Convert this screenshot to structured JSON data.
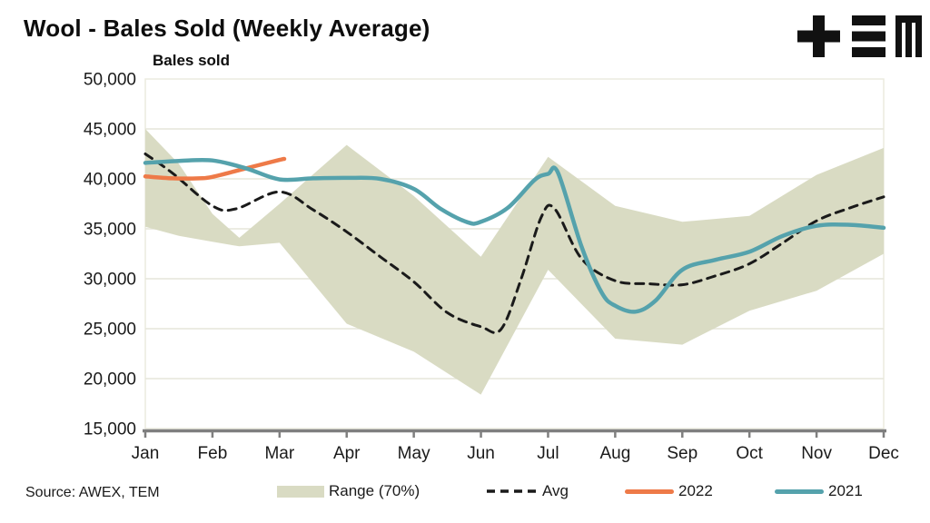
{
  "header": {
    "title": "Wool - Bales Sold (Weekly Average)"
  },
  "source": {
    "text": "Source: AWEX, TEM"
  },
  "legend": [
    {
      "label": "Range (70%)",
      "type": "band",
      "color": "#D9DBC3"
    },
    {
      "label": "Avg",
      "type": "dashed",
      "color": "#1a1a1a"
    },
    {
      "label": "2022",
      "type": "line",
      "color": "#EE7A48"
    },
    {
      "label": "2021",
      "type": "line",
      "color": "#55A2AC"
    }
  ],
  "colors": {
    "band": "#D9DBC3",
    "avg": "#1a1a1a",
    "y2022": "#EE7A48",
    "y2021": "#55A2AC",
    "gridline": "#E6E6DA",
    "plot_border": "#ECEBDF",
    "axis": "#7F7F7F",
    "text": "#1a1a1a",
    "logo": "#111111"
  },
  "chart_data": {
    "type": "area",
    "title": "Wool - Bales Sold (Weekly Average)",
    "xlabel": "",
    "ylabel": "Bales sold",
    "ylim": [
      15000,
      50000
    ],
    "yticks": [
      50000,
      45000,
      40000,
      35000,
      30000,
      25000,
      20000,
      15000
    ],
    "categories": [
      "Jan",
      "Feb",
      "Mar",
      "Apr",
      "May",
      "Jun",
      "Jul",
      "Aug",
      "Sep",
      "Oct",
      "Nov",
      "Dec"
    ],
    "x_unit": "month index, 0 = Jan .. 11 = Dec (weekly-resolution data)",
    "grid": true,
    "legend_position": "bottom",
    "series": [
      {
        "name": "Range (70%)",
        "type": "band",
        "color": "#D9DBC3",
        "top": [
          [
            0,
            45000
          ],
          [
            0.5,
            41500
          ],
          [
            1,
            36500
          ],
          [
            1.4,
            34100
          ],
          [
            2,
            37500
          ],
          [
            3,
            43400
          ],
          [
            4,
            38300
          ],
          [
            5,
            32200
          ],
          [
            6,
            42200
          ],
          [
            7,
            37300
          ],
          [
            8,
            35700
          ],
          [
            9,
            36300
          ],
          [
            10,
            40400
          ],
          [
            11,
            43100
          ]
        ],
        "bottom": [
          [
            0,
            35200
          ],
          [
            0.5,
            34300
          ],
          [
            1,
            33700
          ],
          [
            1.4,
            33250
          ],
          [
            2,
            33600
          ],
          [
            3,
            25500
          ],
          [
            4,
            22700
          ],
          [
            5,
            18400
          ],
          [
            6,
            30900
          ],
          [
            7,
            24000
          ],
          [
            8,
            23400
          ],
          [
            9,
            26800
          ],
          [
            10,
            28800
          ],
          [
            11,
            32500
          ]
        ]
      },
      {
        "name": "Avg",
        "type": "line",
        "style": "dashed",
        "color": "#1a1a1a",
        "width": 3,
        "points": [
          [
            0,
            42500
          ],
          [
            0.4,
            40600
          ],
          [
            1,
            37300
          ],
          [
            1.35,
            37000
          ],
          [
            2,
            38700
          ],
          [
            2.5,
            36900
          ],
          [
            3,
            34700
          ],
          [
            3.5,
            32200
          ],
          [
            4,
            29700
          ],
          [
            4.5,
            26600
          ],
          [
            5,
            25200
          ],
          [
            5.3,
            24950
          ],
          [
            5.6,
            30000
          ],
          [
            5.9,
            36200
          ],
          [
            6.1,
            37000
          ],
          [
            6.5,
            32000
          ],
          [
            7,
            29800
          ],
          [
            7.5,
            29500
          ],
          [
            8,
            29400
          ],
          [
            8.5,
            30300
          ],
          [
            9,
            31500
          ],
          [
            9.5,
            33600
          ],
          [
            10,
            35800
          ],
          [
            10.5,
            37100
          ],
          [
            11,
            38200
          ]
        ]
      },
      {
        "name": "2022",
        "type": "line",
        "style": "solid",
        "color": "#EE7A48",
        "width": 4.5,
        "points": [
          [
            0,
            40250
          ],
          [
            0.4,
            40050
          ],
          [
            0.8,
            40050
          ],
          [
            1,
            40200
          ],
          [
            1.5,
            41050
          ],
          [
            2,
            41900
          ],
          [
            2.07,
            42000
          ]
        ]
      },
      {
        "name": "2021",
        "type": "line",
        "style": "solid",
        "color": "#55A2AC",
        "width": 4.5,
        "points": [
          [
            0,
            41600
          ],
          [
            0.5,
            41800
          ],
          [
            1,
            41850
          ],
          [
            1.5,
            41050
          ],
          [
            2,
            39950
          ],
          [
            2.5,
            40050
          ],
          [
            3,
            40100
          ],
          [
            3.5,
            40000
          ],
          [
            4,
            39000
          ],
          [
            4.4,
            37000
          ],
          [
            4.8,
            35650
          ],
          [
            5,
            35700
          ],
          [
            5.4,
            37100
          ],
          [
            5.8,
            39900
          ],
          [
            6,
            40500
          ],
          [
            6.15,
            40600
          ],
          [
            6.5,
            33200
          ],
          [
            6.8,
            28600
          ],
          [
            7,
            27300
          ],
          [
            7.3,
            26700
          ],
          [
            7.6,
            27800
          ],
          [
            8,
            30900
          ],
          [
            8.5,
            31900
          ],
          [
            9,
            32700
          ],
          [
            9.5,
            34300
          ],
          [
            10,
            35300
          ],
          [
            10.5,
            35400
          ],
          [
            11,
            35100
          ]
        ]
      }
    ]
  }
}
